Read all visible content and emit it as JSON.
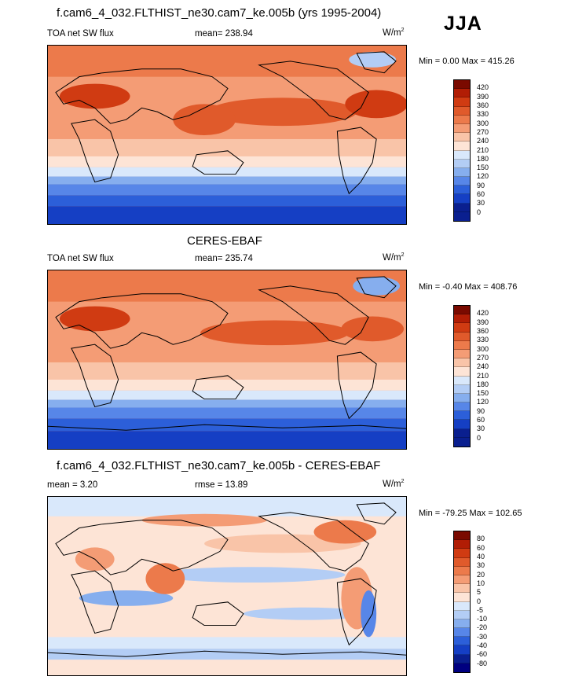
{
  "season": "JJA",
  "panels": [
    {
      "title": "f.cam6_4_032.FLTHIST_ne30.cam7_ke.005b (yrs 1995-2004)",
      "left_label": "TOA net SW flux",
      "center_label": "mean= 238.94",
      "units": "W/m",
      "units_sup": "2",
      "minmax": "Min =   0.00 Max = 415.26",
      "colorbar_labels": [
        "420",
        "390",
        "360",
        "330",
        "300",
        "270",
        "240",
        "210",
        "180",
        "150",
        "120",
        "90",
        "60",
        "30",
        "0"
      ]
    },
    {
      "title": "CERES-EBAF",
      "left_label": "TOA net SW flux",
      "center_label": "mean= 235.74",
      "units": "W/m",
      "units_sup": "2",
      "minmax": "Min =  -0.40 Max = 408.76",
      "colorbar_labels": [
        "420",
        "390",
        "360",
        "330",
        "300",
        "270",
        "240",
        "210",
        "180",
        "150",
        "120",
        "90",
        "60",
        "30",
        "0"
      ]
    },
    {
      "title": "f.cam6_4_032.FLTHIST_ne30.cam7_ke.005b - CERES-EBAF",
      "left_label": "mean =   3.20",
      "center_label": "rmse =  13.89",
      "units": "W/m",
      "units_sup": "2",
      "minmax": "Min = -79.25 Max = 102.65",
      "colorbar_labels": [
        "80",
        "60",
        "40",
        "30",
        "20",
        "10",
        "5",
        "0",
        "-5",
        "-10",
        "-20",
        "-30",
        "-40",
        "-60",
        "-80"
      ]
    }
  ],
  "colors": {
    "abs_scale": [
      "#7a0a00",
      "#b11d05",
      "#d03b12",
      "#e05a2b",
      "#ec7a4b",
      "#f49c75",
      "#f9c4a8",
      "#fde4d6",
      "#d9e8fb",
      "#b3cdf5",
      "#86aeee",
      "#5786e8",
      "#2c5fd9",
      "#153fc4",
      "#0a1f8f"
    ],
    "diff_scale": [
      "#7a0a00",
      "#b11d05",
      "#d03b12",
      "#e05a2b",
      "#ec7a4b",
      "#f49c75",
      "#f9c4a8",
      "#fde4d6",
      "#d9e8fb",
      "#b3cdf5",
      "#86aeee",
      "#5786e8",
      "#2c5fd9",
      "#153fc4",
      "#0a1f8f",
      "#000080"
    ]
  }
}
